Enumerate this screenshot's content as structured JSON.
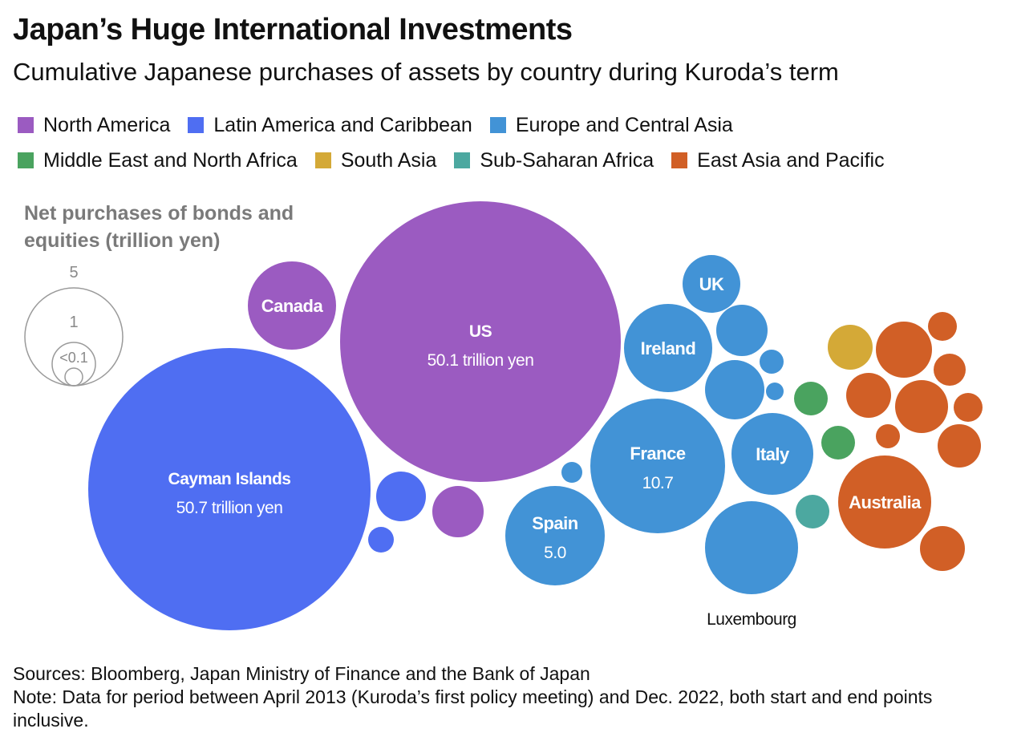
{
  "title": "Japan’s Huge International Investments",
  "subtitle": "Cumulative Japanese purchases of assets by country during Kuroda’s term",
  "legend": [
    {
      "label": "North America",
      "color": "#9b5bc1"
    },
    {
      "label": "Latin America and Caribbean",
      "color": "#4f6ef2"
    },
    {
      "label": "Europe and Central Asia",
      "color": "#4293d6"
    },
    {
      "label": "Middle East and North Africa",
      "color": "#4aa35f"
    },
    {
      "label": "South Asia",
      "color": "#d4a937"
    },
    {
      "label": "Sub-Saharan Africa",
      "color": "#4ca8a0"
    },
    {
      "label": "East Asia and Pacific",
      "color": "#d15f26"
    }
  ],
  "size_key": {
    "title_line1": "Net purchases of bonds and",
    "title_line2": "equities (trillion yen)",
    "labels": [
      "5",
      "1",
      "<0.1"
    ]
  },
  "footer": {
    "sources": "Sources: Bloomberg, Japan Ministry of Finance and the Bank of Japan",
    "note": "Note: Data for period between April 2013 (Kuroda’s first policy meeting) and Dec. 2022, both start and end points inclusive."
  },
  "chart_data": {
    "type": "bubble",
    "title": "Japan’s Huge International Investments",
    "subtitle": "Cumulative Japanese purchases of assets by country during Kuroda’s term",
    "size_unit": "trillion yen",
    "series": [
      {
        "name": "North America",
        "color": "#9b5bc1"
      },
      {
        "name": "Latin America and Caribbean",
        "color": "#4f6ef2"
      },
      {
        "name": "Europe and Central Asia",
        "color": "#4293d6"
      },
      {
        "name": "Middle East and North Africa",
        "color": "#4aa35f"
      },
      {
        "name": "South Asia",
        "color": "#d4a937"
      },
      {
        "name": "Sub-Saharan Africa",
        "color": "#4ca8a0"
      },
      {
        "name": "East Asia and Pacific",
        "color": "#d15f26"
      }
    ],
    "bubbles": [
      {
        "label": "Cayman Islands",
        "value": 50.7,
        "value_label": "50.7 trillion yen",
        "region": "Latin America and Caribbean"
      },
      {
        "label": "US",
        "value": 50.1,
        "value_label": "50.1 trillion yen",
        "region": "North America"
      },
      {
        "label": "Canada",
        "value": 5.5,
        "region": "North America"
      },
      {
        "label": "",
        "value": 1.5,
        "region": "North America"
      },
      {
        "label": "",
        "value": 1.6,
        "region": "Latin America and Caribbean"
      },
      {
        "label": "",
        "value": 0.4,
        "region": "Latin America and Caribbean"
      },
      {
        "label": "France",
        "value": 10.7,
        "value_label": "10.7",
        "region": "Europe and Central Asia"
      },
      {
        "label": "Spain",
        "value": 5.0,
        "value_label": "5.0",
        "region": "Europe and Central Asia"
      },
      {
        "label": "Luxembourg",
        "value": 4.5,
        "region": "Europe and Central Asia"
      },
      {
        "label": "Ireland",
        "value": 4.2,
        "region": "Europe and Central Asia"
      },
      {
        "label": "Italy",
        "value": 3.6,
        "region": "Europe and Central Asia"
      },
      {
        "label": "UK",
        "value": 1.7,
        "region": "Europe and Central Asia"
      },
      {
        "label": "",
        "value": 1.5,
        "region": "Europe and Central Asia"
      },
      {
        "label": "",
        "value": 1.9,
        "region": "Europe and Central Asia"
      },
      {
        "label": "",
        "value": 0.3,
        "region": "Europe and Central Asia"
      },
      {
        "label": "",
        "value": 0.2,
        "region": "Europe and Central Asia"
      },
      {
        "label": "",
        "value": 0.1,
        "region": "Europe and Central Asia"
      },
      {
        "label": "",
        "value": 0.6,
        "region": "Middle East and North Africa"
      },
      {
        "label": "",
        "value": 0.6,
        "region": "Middle East and North Africa"
      },
      {
        "label": "",
        "value": 1.1,
        "region": "South Asia"
      },
      {
        "label": "",
        "value": 0.5,
        "region": "Sub-Saharan Africa"
      },
      {
        "label": "Australia",
        "value": 4.5,
        "region": "East Asia and Pacific"
      },
      {
        "label": "",
        "value": 1.7,
        "region": "East Asia and Pacific"
      },
      {
        "label": "",
        "value": 1.5,
        "region": "East Asia and Pacific"
      },
      {
        "label": "",
        "value": 1.1,
        "region": "East Asia and Pacific"
      },
      {
        "label": "",
        "value": 1.1,
        "region": "East Asia and Pacific"
      },
      {
        "label": "",
        "value": 1.1,
        "region": "East Asia and Pacific"
      },
      {
        "label": "",
        "value": 0.6,
        "region": "East Asia and Pacific"
      },
      {
        "label": "",
        "value": 0.5,
        "region": "East Asia and Pacific"
      },
      {
        "label": "",
        "value": 0.4,
        "region": "East Asia and Pacific"
      },
      {
        "label": "",
        "value": 0.3,
        "region": "East Asia and Pacific"
      }
    ]
  }
}
